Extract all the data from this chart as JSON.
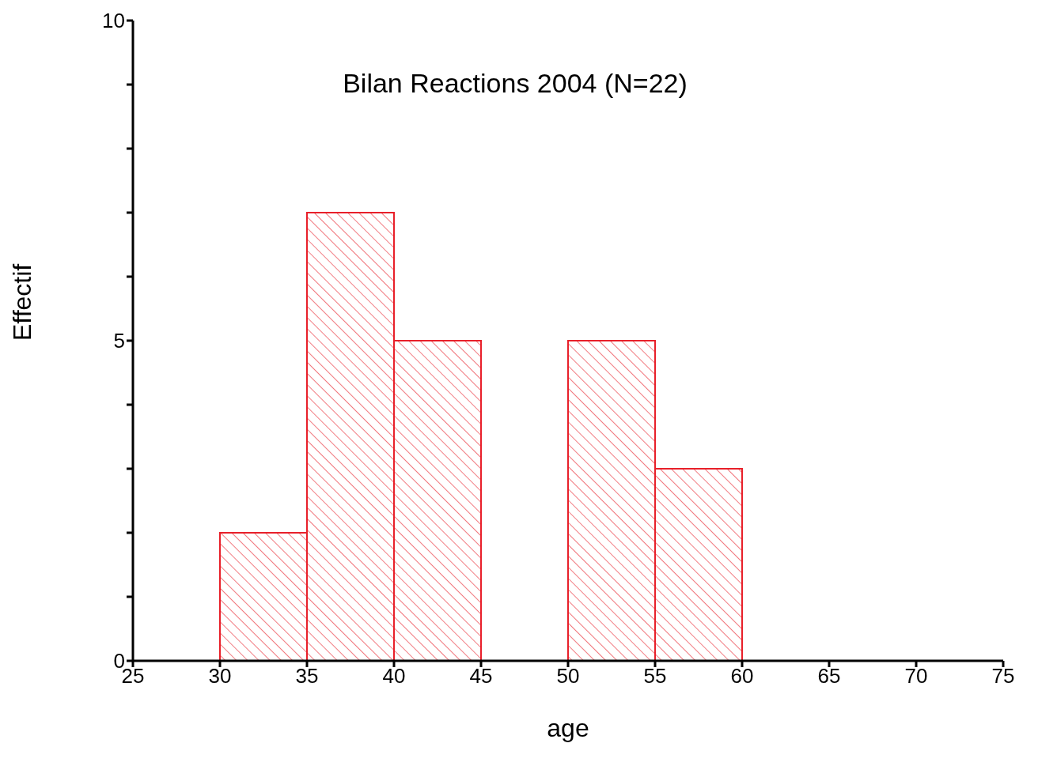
{
  "chart_data": {
    "type": "histogram",
    "title": "Bilan Reactions 2004 (N=22)",
    "xlabel": "age",
    "ylabel": "Effectif",
    "bins": [
      30,
      35,
      40,
      45,
      50,
      55,
      60
    ],
    "values": [
      2,
      7,
      5,
      0,
      5,
      3
    ],
    "color": "#e8202a",
    "xlim": [
      25,
      75
    ],
    "xticks": [
      25,
      30,
      35,
      40,
      45,
      50,
      55,
      60,
      65,
      70,
      75
    ],
    "ylim": [
      0,
      10
    ],
    "yticks": [
      0,
      {
        "value": 1,
        "label": null
      },
      {
        "value": 2,
        "label": null
      },
      {
        "value": 3,
        "label": null
      },
      {
        "value": 4,
        "label": null
      },
      5,
      {
        "value": 6,
        "label": null
      },
      {
        "value": 7,
        "label": null
      },
      {
        "value": 8,
        "label": null
      },
      {
        "value": 9,
        "label": null
      },
      10
    ],
    "grid": false,
    "legend": false
  }
}
